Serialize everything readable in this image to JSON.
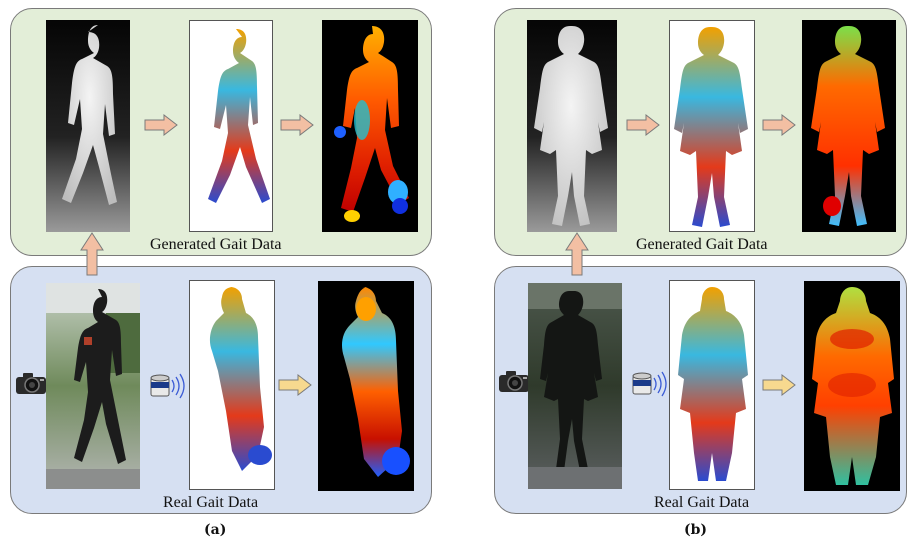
{
  "panels": [
    {
      "subfigure_label": "(a)",
      "generated_label": "Generated Gait Data",
      "real_label": "Real Gait Data",
      "icons": [
        "camera-icon",
        "lidar-sensor-icon",
        "right-arrow-icon",
        "up-arrow-icon"
      ]
    },
    {
      "subfigure_label": "(b)",
      "generated_label": "Generated Gait Data",
      "real_label": "Real Gait Data",
      "icons": [
        "camera-icon",
        "lidar-sensor-icon",
        "right-arrow-icon",
        "up-arrow-icon"
      ]
    }
  ],
  "colors": {
    "generated_panel_bg": "#e3eed8",
    "real_panel_bg": "#d6e0f2",
    "gen_arrow_fill": "#f3bfa3",
    "real_arrow_fill": "#f7d98f",
    "panel_border": "#7a7a7a"
  }
}
